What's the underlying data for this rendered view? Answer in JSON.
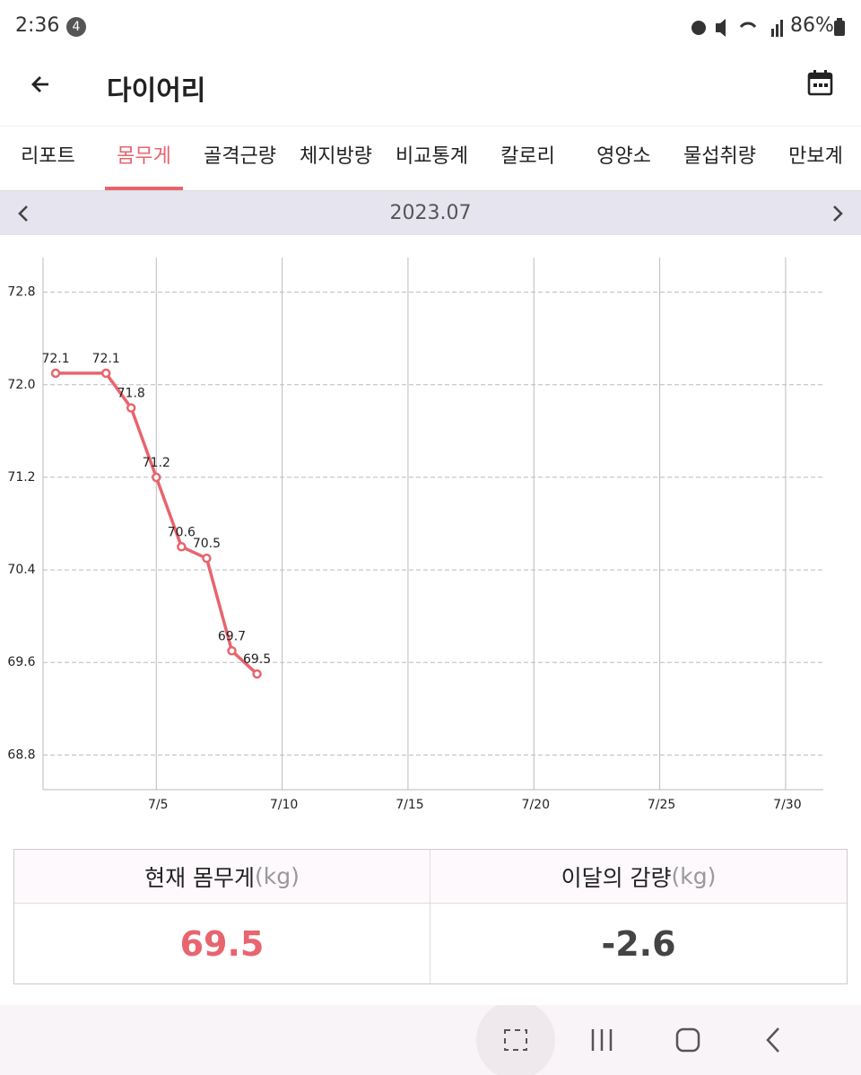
{
  "status_bar": {
    "time": "2:36",
    "badge": "4",
    "battery": "86%"
  },
  "header": {
    "title": "다이어리"
  },
  "tabs": {
    "items": [
      "리포트",
      "몸무게",
      "골격근량",
      "체지방량",
      "비교통계",
      "칼로리",
      "영양소",
      "물섭취량",
      "만보계"
    ],
    "active": 1
  },
  "month_nav": {
    "label": "2023.07"
  },
  "chart_data": {
    "type": "line",
    "x": [
      1,
      3,
      4,
      5,
      6,
      7,
      8,
      9
    ],
    "values": [
      72.1,
      72.1,
      71.8,
      71.2,
      70.6,
      70.5,
      69.7,
      69.5
    ],
    "color": "#e8646e",
    "xlim": [
      0.5,
      31.5
    ],
    "xticks": [
      {
        "value": 5,
        "label": "7/5"
      },
      {
        "value": 10,
        "label": "7/10"
      },
      {
        "value": 15,
        "label": "7/15"
      },
      {
        "value": 20,
        "label": "7/20"
      },
      {
        "value": 25,
        "label": "7/25"
      },
      {
        "value": 30,
        "label": "7/30"
      }
    ],
    "ylim": [
      68.5,
      73.1
    ],
    "yticks": [
      68.8,
      69.6,
      70.4,
      71.2,
      {
        "value": 72,
        "label": "72.0"
      },
      72.8
    ],
    "grid": true
  },
  "summary": {
    "cells": [
      {
        "label": "현재 몸무게",
        "unit": "(kg)",
        "value": 69.5
      },
      {
        "label": "이달의 감량",
        "unit": "(kg)",
        "value": -2.6
      }
    ]
  }
}
